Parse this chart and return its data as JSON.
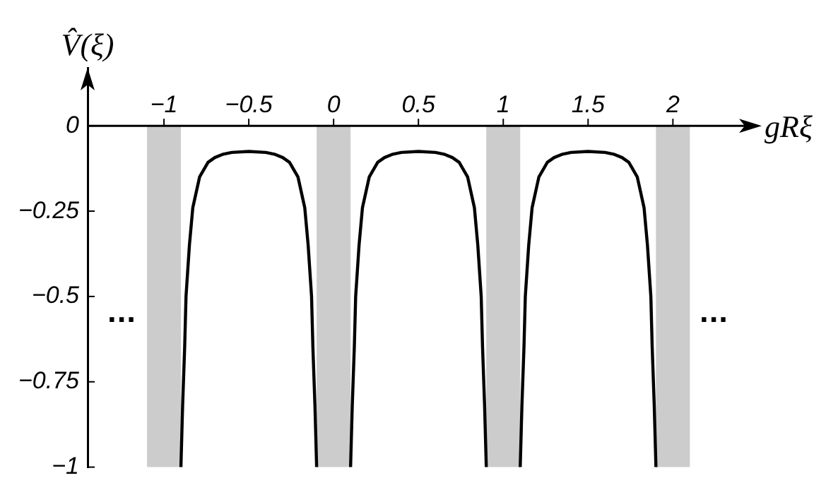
{
  "chart_data": {
    "type": "line",
    "xlabel": "gRξ",
    "ylabel": "V̂(ξ)",
    "xlim": [
      -1.45,
      2.49
    ],
    "ylim": [
      -1,
      0.17
    ],
    "xticks": [
      {
        "value": -1,
        "label": "−1"
      },
      {
        "value": -0.5,
        "label": "−0.5"
      },
      0,
      0.5,
      1,
      1.5,
      2
    ],
    "yticks": [
      0,
      {
        "value": -0.25,
        "label": "−0.25"
      },
      {
        "value": -0.5,
        "label": "−0.5"
      },
      {
        "value": -0.75,
        "label": "−0.75"
      },
      {
        "value": -1,
        "label": "−1"
      }
    ],
    "grid": false,
    "legend": false,
    "marker": "none",
    "line_style": "solid",
    "bands": [
      {
        "axis": "x",
        "from": -1.1,
        "to": -0.9,
        "color": "#cccccc"
      },
      {
        "axis": "x",
        "from": -0.1,
        "to": 0.1,
        "color": "#cccccc"
      },
      {
        "axis": "x",
        "from": 0.9,
        "to": 1.1,
        "color": "#cccccc"
      },
      {
        "axis": "x",
        "from": 1.9,
        "to": 2.1,
        "color": "#cccccc"
      }
    ],
    "series": [
      {
        "color": "#000000",
        "x": [
          -0.9,
          -0.89,
          -0.878,
          -0.87,
          -0.85,
          -0.83,
          -0.79,
          -0.74,
          -0.7,
          -0.65,
          -0.6,
          -0.5,
          -0.4,
          -0.35,
          -0.3,
          -0.26,
          -0.21,
          -0.17,
          -0.15,
          -0.13,
          -0.122,
          -0.11,
          -0.1,
          0,
          0.1,
          0.11,
          0.122,
          0.13,
          0.15,
          0.17,
          0.21,
          0.26,
          0.3,
          0.35,
          0.4,
          0.5,
          0.6,
          0.65,
          0.7,
          0.74,
          0.79,
          0.83,
          0.85,
          0.87,
          0.878,
          0.89,
          0.9,
          1,
          1.1,
          1.11,
          1.122,
          1.13,
          1.15,
          1.17,
          1.21,
          1.26,
          1.3,
          1.35,
          1.4,
          1.5,
          1.6,
          1.65,
          1.7,
          1.74,
          1.79,
          1.83,
          1.85,
          1.87,
          1.878,
          1.89,
          1.9
        ],
        "values": [
          -1,
          -0.82,
          -0.65,
          -0.5,
          -0.35,
          -0.24,
          -0.15,
          -0.107,
          -0.093,
          -0.083,
          -0.078,
          -0.075,
          -0.078,
          -0.083,
          -0.093,
          -0.107,
          -0.15,
          -0.24,
          -0.35,
          -0.5,
          -0.65,
          -0.82,
          -1,
          null,
          -1,
          -0.82,
          -0.65,
          -0.5,
          -0.35,
          -0.24,
          -0.15,
          -0.107,
          -0.093,
          -0.083,
          -0.078,
          -0.075,
          -0.078,
          -0.083,
          -0.093,
          -0.107,
          -0.15,
          -0.24,
          -0.35,
          -0.5,
          -0.65,
          -0.82,
          -1,
          null,
          -1,
          -0.82,
          -0.65,
          -0.5,
          -0.35,
          -0.24,
          -0.15,
          -0.107,
          -0.093,
          -0.083,
          -0.078,
          -0.075,
          -0.078,
          -0.083,
          -0.093,
          -0.107,
          -0.15,
          -0.24,
          -0.35,
          -0.5,
          -0.65,
          -0.82,
          -1
        ]
      }
    ],
    "annotations": [
      "...",
      "..."
    ]
  }
}
